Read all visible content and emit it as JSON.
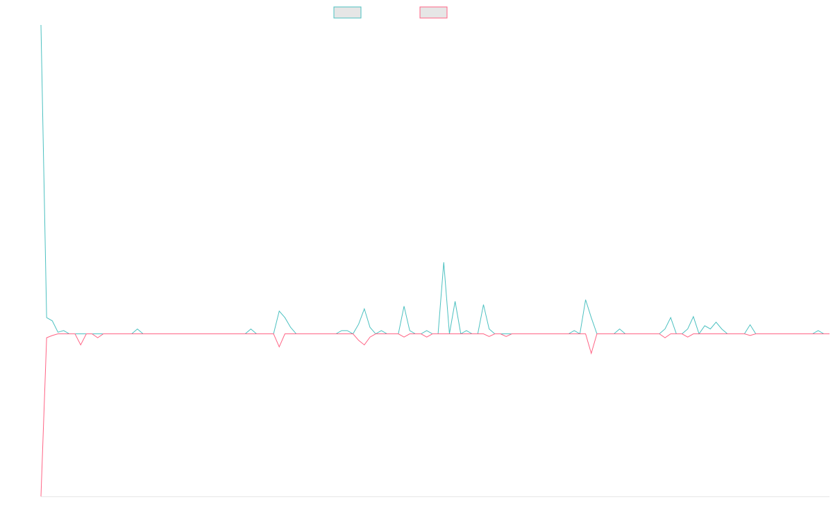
{
  "chart_data": {
    "type": "line",
    "ylim": [
      -50,
      95
    ],
    "grid": false,
    "series": [
      {
        "color": "#4bc0c0",
        "values": [
          95,
          5,
          4,
          0.5,
          1,
          0,
          0,
          0,
          0,
          0,
          0,
          0,
          0,
          0,
          0,
          0,
          0,
          1.5,
          0,
          0,
          0,
          0,
          0,
          0,
          0,
          0,
          0,
          0,
          0,
          0,
          0,
          0,
          0,
          0,
          0,
          0,
          0,
          1.5,
          0,
          0,
          0,
          0,
          7,
          5,
          2,
          0,
          0,
          0,
          0,
          0,
          0,
          0,
          0,
          1,
          1,
          0,
          3,
          7.7,
          2,
          0,
          1,
          0,
          0,
          0,
          8.5,
          1,
          0,
          0,
          1,
          0,
          0,
          22,
          0,
          10,
          0,
          1,
          0,
          0,
          9,
          1.5,
          0,
          0,
          0,
          0,
          0,
          0,
          0,
          0,
          0,
          0,
          0,
          0,
          0,
          0,
          1,
          0,
          10.5,
          5,
          0,
          0,
          0,
          0,
          1.5,
          0,
          0,
          0,
          0,
          0,
          0,
          0,
          1.5,
          5,
          0,
          0,
          1.5,
          5.3,
          0,
          2.5,
          1.5,
          3.6,
          1.5,
          0,
          0,
          0,
          0,
          2.8,
          0,
          0,
          0,
          0,
          0,
          0,
          0,
          0,
          0,
          0,
          0,
          1,
          0,
          0
        ]
      },
      {
        "color": "#ff6384",
        "values": [
          -50,
          -1.2,
          -0.5,
          0,
          0,
          0,
          0,
          -3.4,
          0,
          0,
          -1.2,
          0,
          0,
          0,
          0,
          0,
          0,
          0,
          0,
          0,
          0,
          0,
          0,
          0,
          0,
          0,
          0,
          0,
          0,
          0,
          0,
          0,
          0,
          0,
          0,
          0,
          0,
          0,
          0,
          0,
          0,
          0,
          -4,
          0,
          0,
          0,
          0,
          0,
          0,
          0,
          0,
          0,
          0,
          0,
          0,
          0,
          -2,
          -3.4,
          -1,
          0,
          0,
          0,
          0,
          0,
          -1,
          0,
          0,
          0,
          -1,
          0,
          0,
          0,
          0,
          0,
          0,
          0,
          0,
          0,
          0,
          -0.8,
          0,
          0,
          -0.8,
          0,
          0,
          0,
          0,
          0,
          0,
          0,
          0,
          0,
          0,
          0,
          0,
          0,
          0,
          -6,
          0,
          0,
          0,
          0,
          0,
          0,
          0,
          0,
          0,
          0,
          0,
          0,
          -1.2,
          0,
          0,
          0,
          -1,
          0,
          0,
          0,
          0,
          0,
          0,
          0,
          0,
          0,
          0,
          -0.5,
          0,
          0,
          0,
          0,
          0,
          0,
          0,
          0,
          0,
          0,
          0,
          0,
          0,
          0
        ]
      }
    ]
  }
}
